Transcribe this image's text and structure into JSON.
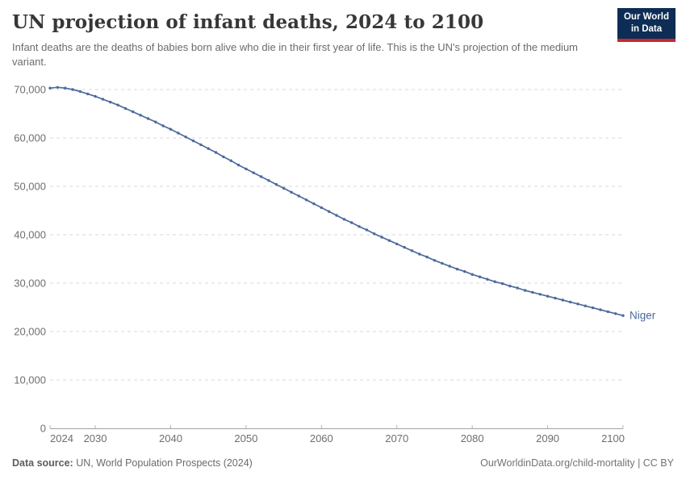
{
  "header": {
    "title": "UN projection of infant deaths, 2024 to 2100",
    "subtitle": "Infant deaths are the deaths of babies born alive who die in their first year of life. This is the UN's projection of the medium variant."
  },
  "logo": {
    "line1": "Our World",
    "line2": "in Data",
    "bg_color": "#0d2d55",
    "stripe_color": "#c22b2f"
  },
  "footer": {
    "data_source_label": "Data source:",
    "data_source_value": " UN, World Population Prospects (2024)",
    "credit": "OurWorldinData.org/child-mortality | CC BY"
  },
  "chart_data": {
    "type": "line",
    "title": "UN projection of infant deaths, 2024 to 2100",
    "subtitle": "Infant deaths are the deaths of babies born alive who die in their first year of life. This is the UN's projection of the medium variant.",
    "xlabel": "",
    "ylabel": "",
    "ylim": [
      0,
      70000
    ],
    "yticks": [
      0,
      10000,
      20000,
      30000,
      40000,
      50000,
      60000,
      70000
    ],
    "ytick_labels": [
      "0",
      "10,000",
      "20,000",
      "30,000",
      "40,000",
      "50,000",
      "60,000",
      "70,000"
    ],
    "xticks": [
      2024,
      2030,
      2040,
      2050,
      2060,
      2070,
      2080,
      2090,
      2100
    ],
    "grid": "horizontal-dashed",
    "legend_position": "end-of-line-label",
    "x": [
      2024,
      2025,
      2026,
      2027,
      2028,
      2029,
      2030,
      2031,
      2032,
      2033,
      2034,
      2035,
      2036,
      2037,
      2038,
      2039,
      2040,
      2041,
      2042,
      2043,
      2044,
      2045,
      2046,
      2047,
      2048,
      2049,
      2050,
      2051,
      2052,
      2053,
      2054,
      2055,
      2056,
      2057,
      2058,
      2059,
      2060,
      2061,
      2062,
      2063,
      2064,
      2065,
      2066,
      2067,
      2068,
      2069,
      2070,
      2071,
      2072,
      2073,
      2074,
      2075,
      2076,
      2077,
      2078,
      2079,
      2080,
      2081,
      2082,
      2083,
      2084,
      2085,
      2086,
      2087,
      2088,
      2089,
      2090,
      2091,
      2092,
      2093,
      2094,
      2095,
      2096,
      2097,
      2098,
      2099,
      2100
    ],
    "series": [
      {
        "name": "Niger",
        "color": "#4C6A9C",
        "values": [
          70300,
          70450,
          70300,
          70000,
          69600,
          69100,
          68600,
          68000,
          67400,
          66800,
          66100,
          65400,
          64700,
          64000,
          63300,
          62500,
          61800,
          61000,
          60200,
          59400,
          58600,
          57800,
          57000,
          56100,
          55300,
          54400,
          53600,
          52800,
          52000,
          51200,
          50400,
          49600,
          48800,
          48000,
          47200,
          46400,
          45600,
          44800,
          44000,
          43200,
          42500,
          41700,
          41000,
          40200,
          39500,
          38800,
          38100,
          37400,
          36700,
          36000,
          35400,
          34700,
          34100,
          33500,
          32900,
          32400,
          31800,
          31300,
          30800,
          30300,
          29900,
          29400,
          29000,
          28500,
          28100,
          27700,
          27300,
          26900,
          26500,
          26100,
          25700,
          25300,
          24900,
          24500,
          24100,
          23700,
          23300
        ]
      }
    ],
    "colors": {
      "line": "#4C6A9C",
      "gridline": "#d9d9d9",
      "axis": "#a3a3a3",
      "tick_text": "#6e6e6e"
    }
  }
}
